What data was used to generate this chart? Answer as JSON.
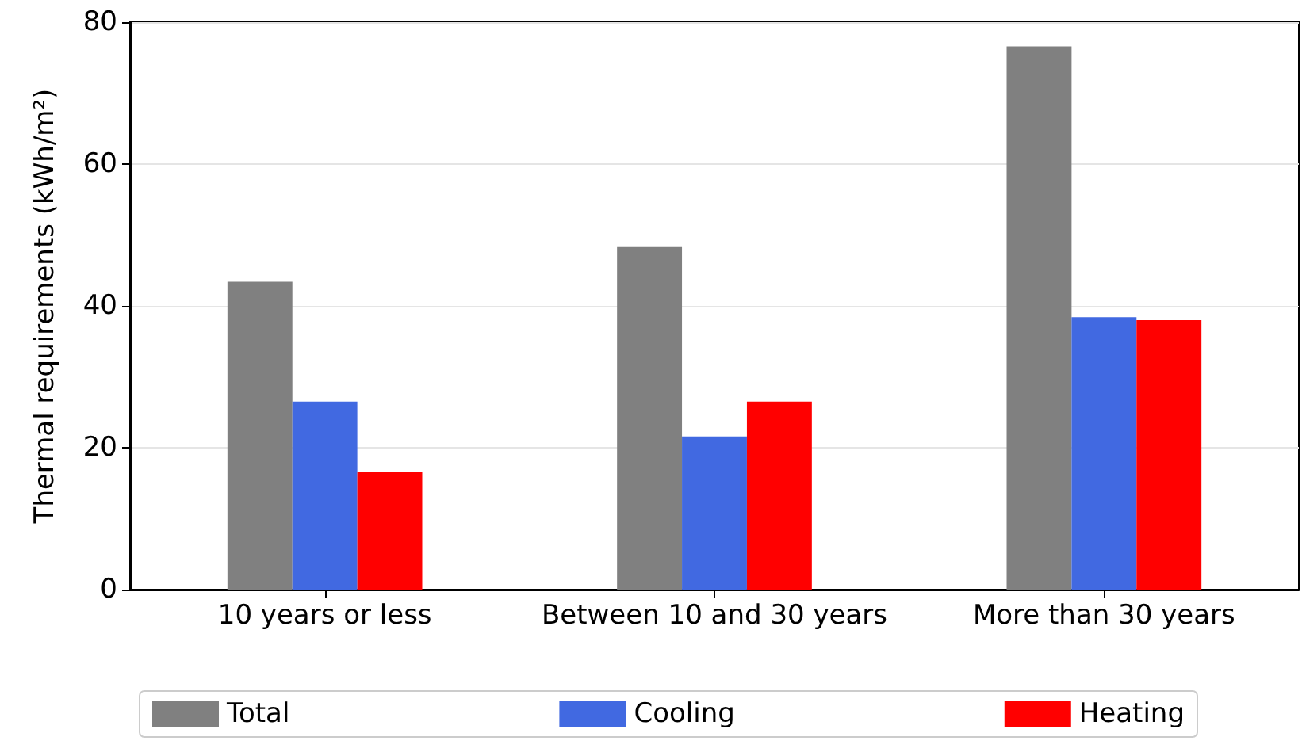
{
  "chart_data": {
    "type": "bar",
    "ylabel": "Thermal requirements (kWh/m²)",
    "categories": [
      "10 years or less",
      "Between 10 and 30 years",
      "More than 30 years"
    ],
    "series": [
      {
        "name": "Total",
        "color": "#808080",
        "values": [
          43.4,
          48.3,
          76.6
        ]
      },
      {
        "name": "Cooling",
        "color": "#4169e1",
        "values": [
          26.5,
          21.6,
          38.4
        ]
      },
      {
        "name": "Heating",
        "color": "#ff0000",
        "values": [
          16.6,
          26.5,
          38.0
        ]
      }
    ],
    "ylim": [
      0,
      80
    ],
    "yticks": [
      0,
      20,
      40,
      60,
      80
    ],
    "grid": "y",
    "legend": "bottom"
  }
}
